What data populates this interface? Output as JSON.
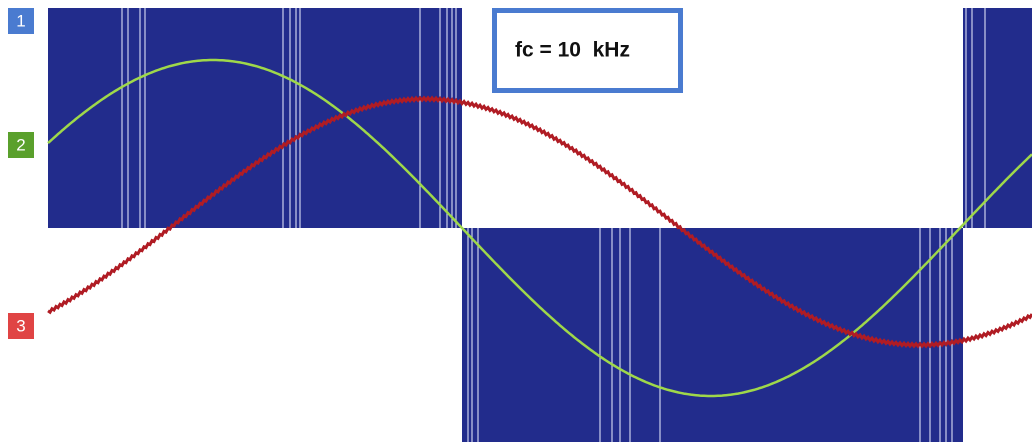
{
  "channels": [
    {
      "label": "1"
    },
    {
      "label": "2"
    },
    {
      "label": "3"
    }
  ],
  "annotation": {
    "text": "fc = 10  kHz"
  }
}
